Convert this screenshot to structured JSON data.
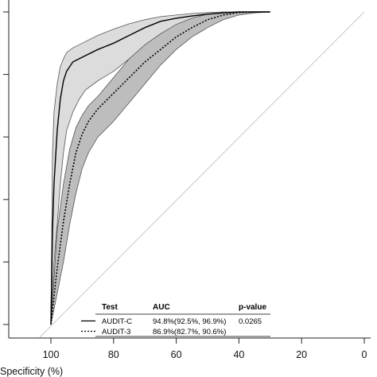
{
  "chart_data": {
    "type": "line",
    "title": "",
    "xlabel": "Specificity (%)",
    "ylabel": "",
    "xlim": [
      100,
      0
    ],
    "ylim": [
      0,
      100
    ],
    "x_axis_reversed": true,
    "x_ticks": [
      100,
      80,
      60,
      40,
      20,
      0
    ],
    "x_tick_labels": [
      "100",
      "80",
      "60",
      "40",
      "20",
      "0"
    ],
    "y_ticks": [
      0,
      20,
      40,
      60,
      80,
      100
    ],
    "y_tick_labels_visible": false,
    "grid": false,
    "reference_line": {
      "from": [
        100,
        0
      ],
      "to": [
        0,
        100
      ],
      "color": "#c8c8c8"
    },
    "series": [
      {
        "name": "AUDIT-C",
        "line_style": "solid",
        "line_color": "#000000",
        "band_color": "#dcdcdc",
        "x": [
          100,
          99.5,
          99,
          98,
          97,
          96,
          95,
          93,
          91,
          89,
          85,
          80,
          75,
          70,
          65,
          60,
          55,
          50,
          45,
          40,
          35,
          30
        ],
        "values": [
          0,
          30,
          45,
          62,
          72,
          78,
          81,
          84,
          85,
          86,
          88,
          90,
          92.5,
          95,
          97,
          98,
          98.7,
          99.3,
          99.7,
          100,
          100,
          100
        ],
        "ci_upper": [
          0,
          55,
          68,
          77,
          82.5,
          85,
          87,
          88.5,
          89.5,
          90.5,
          92.5,
          94.5,
          96.2,
          97.5,
          98.5,
          99,
          99.5,
          99.8,
          100,
          100,
          100,
          100
        ],
        "ci_lower": [
          0,
          10,
          20,
          32,
          45,
          55,
          62,
          68,
          72,
          75,
          78,
          81,
          85,
          89,
          92.5,
          95,
          97,
          98,
          99,
          99.6,
          100,
          100
        ]
      },
      {
        "name": "AUDIT-3",
        "line_style": "dotted",
        "line_color": "#000000",
        "band_color": "#bdbdbd",
        "x": [
          100,
          98,
          96,
          94,
          92,
          90,
          88,
          85,
          80,
          75,
          70,
          65,
          60,
          55,
          50,
          45,
          40,
          35,
          30
        ],
        "values": [
          0,
          18,
          33,
          45,
          55,
          61,
          65,
          69,
          74,
          79,
          84,
          88,
          92,
          95,
          97.5,
          99,
          99.8,
          100,
          100
        ],
        "ci_upper": [
          0,
          30,
          45,
          56,
          63,
          67,
          70,
          73,
          79,
          85,
          89.5,
          93,
          96,
          98,
          99.3,
          99.8,
          100,
          100,
          100
        ],
        "ci_lower": [
          0,
          10,
          20,
          32,
          42,
          50,
          55,
          60,
          65,
          71,
          77,
          83,
          88,
          92,
          95,
          97.5,
          99,
          99.7,
          100
        ]
      }
    ],
    "legend": {
      "placement": "bottom-right",
      "headers": {
        "test": "Test",
        "auc": "AUC",
        "p_value": "p-value"
      },
      "rows": [
        {
          "test": "AUDIT-C",
          "auc": "94.8%(92.5%, 96.9%)",
          "p_value": "0.0265",
          "line_style": "solid"
        },
        {
          "test": "AUDIT-3",
          "auc": "86.9%(82.7%, 90.6%)",
          "p_value": "",
          "line_style": "dotted"
        }
      ]
    }
  }
}
